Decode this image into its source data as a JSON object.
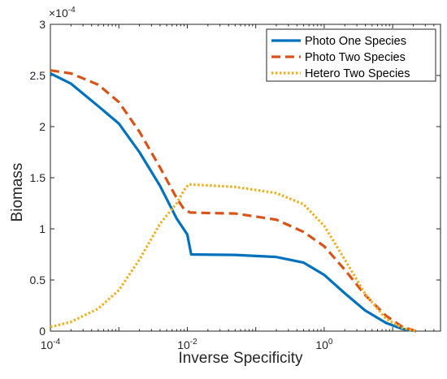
{
  "chart_data": {
    "type": "line",
    "xlabel": "Inverse Specificity",
    "ylabel": "Biomass",
    "x_scale": "log",
    "xlim": [
      0.0001,
      50
    ],
    "ylim": [
      0,
      0.0003
    ],
    "y_exponent_label": "×10",
    "y_exponent_power": "-4",
    "y_ticks": [
      0,
      5e-05,
      0.0001,
      0.00015,
      0.0002,
      0.00025,
      0.0003
    ],
    "y_tick_labels": [
      "0",
      "0.5",
      "1",
      "1.5",
      "2",
      "2.5",
      "3"
    ],
    "x_ticks": [
      {
        "value": 0.0001,
        "base": "10",
        "exp": "-4"
      },
      {
        "value": 0.01,
        "base": "10",
        "exp": "-2"
      },
      {
        "value": 1,
        "base": "10",
        "exp": "0"
      }
    ],
    "grid": false,
    "legend_position": "top-right",
    "series": [
      {
        "name": "Photo One Species",
        "color": "#0072BD",
        "style": "solid",
        "points": [
          [
            0.0001,
            0.000252
          ],
          [
            0.0002,
            0.000242
          ],
          [
            0.0005,
            0.00022
          ],
          [
            0.001,
            0.000203
          ],
          [
            0.002,
            0.000175
          ],
          [
            0.004,
            0.000142
          ],
          [
            0.007,
            0.00011
          ],
          [
            0.01,
            9.45e-05
          ],
          [
            0.0114,
            7.5e-05
          ],
          [
            0.05,
            7.45e-05
          ],
          [
            0.2,
            7.25e-05
          ],
          [
            0.5,
            6.7e-05
          ],
          [
            1,
            5.5e-05
          ],
          [
            2,
            3.7e-05
          ],
          [
            4,
            2e-05
          ],
          [
            8,
            8e-06
          ],
          [
            14,
            2e-06
          ],
          [
            22,
            0.0
          ]
        ]
      },
      {
        "name": "Photo Two Species",
        "color": "#D95319",
        "style": "dashed",
        "points": [
          [
            0.0001,
            0.000255
          ],
          [
            0.0002,
            0.000252
          ],
          [
            0.0005,
            0.000241
          ],
          [
            0.001,
            0.000224
          ],
          [
            0.002,
            0.000195
          ],
          [
            0.004,
            0.00016
          ],
          [
            0.007,
            0.00013
          ],
          [
            0.009,
            0.000119
          ],
          [
            0.011,
            0.000116
          ],
          [
            0.02,
            0.0001155
          ],
          [
            0.05,
            0.000115
          ],
          [
            0.2,
            0.000109
          ],
          [
            0.5,
            9.7e-05
          ],
          [
            1,
            8.3e-05
          ],
          [
            2,
            6e-05
          ],
          [
            4,
            3.5e-05
          ],
          [
            8,
            1.5e-05
          ],
          [
            14,
            4e-06
          ],
          [
            22,
            0.0
          ]
        ]
      },
      {
        "name": "Hetero Two Species",
        "color": "#EDB120",
        "style": "dotted",
        "points": [
          [
            0.0001,
            4e-06
          ],
          [
            0.0002,
            9e-06
          ],
          [
            0.0005,
            2.2e-05
          ],
          [
            0.001,
            4e-05
          ],
          [
            0.002,
            7e-05
          ],
          [
            0.004,
            0.000105
          ],
          [
            0.007,
            0.000125
          ],
          [
            0.009,
            0.000138
          ],
          [
            0.0105,
            0.0001435
          ],
          [
            0.02,
            0.0001425
          ],
          [
            0.05,
            0.000141
          ],
          [
            0.2,
            0.000135
          ],
          [
            0.5,
            0.000124
          ],
          [
            1,
            0.000103
          ],
          [
            2,
            7e-05
          ],
          [
            4,
            3.6e-05
          ],
          [
            8,
            1.2e-05
          ],
          [
            14,
            3e-06
          ],
          [
            22,
            0.0
          ]
        ]
      }
    ]
  }
}
